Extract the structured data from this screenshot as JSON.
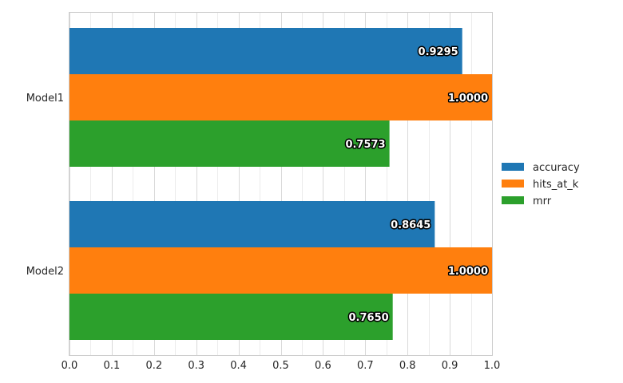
{
  "chart_data": {
    "type": "bar",
    "orientation": "horizontal",
    "categories": [
      "Model1",
      "Model2"
    ],
    "series": [
      {
        "name": "accuracy",
        "values": [
          0.9295,
          0.8645
        ],
        "labels": [
          "0.9295",
          "0.8645"
        ],
        "color": "#1f77b4"
      },
      {
        "name": "hits_at_k",
        "values": [
          1.0,
          1.0
        ],
        "labels": [
          "1.0000",
          "1.0000"
        ],
        "color": "#ff7f0e"
      },
      {
        "name": "mrr",
        "values": [
          0.7573,
          0.765
        ],
        "labels": [
          "0.7573",
          "0.7650"
        ],
        "color": "#2ca02c"
      }
    ],
    "xlim": [
      0.0,
      1.0
    ],
    "xticks": [
      "0.0",
      "0.1",
      "0.2",
      "0.3",
      "0.4",
      "0.5",
      "0.6",
      "0.7",
      "0.8",
      "0.9",
      "1.0"
    ],
    "title": "",
    "xlabel": "",
    "ylabel": "",
    "grid": true,
    "legend_position": "right"
  }
}
